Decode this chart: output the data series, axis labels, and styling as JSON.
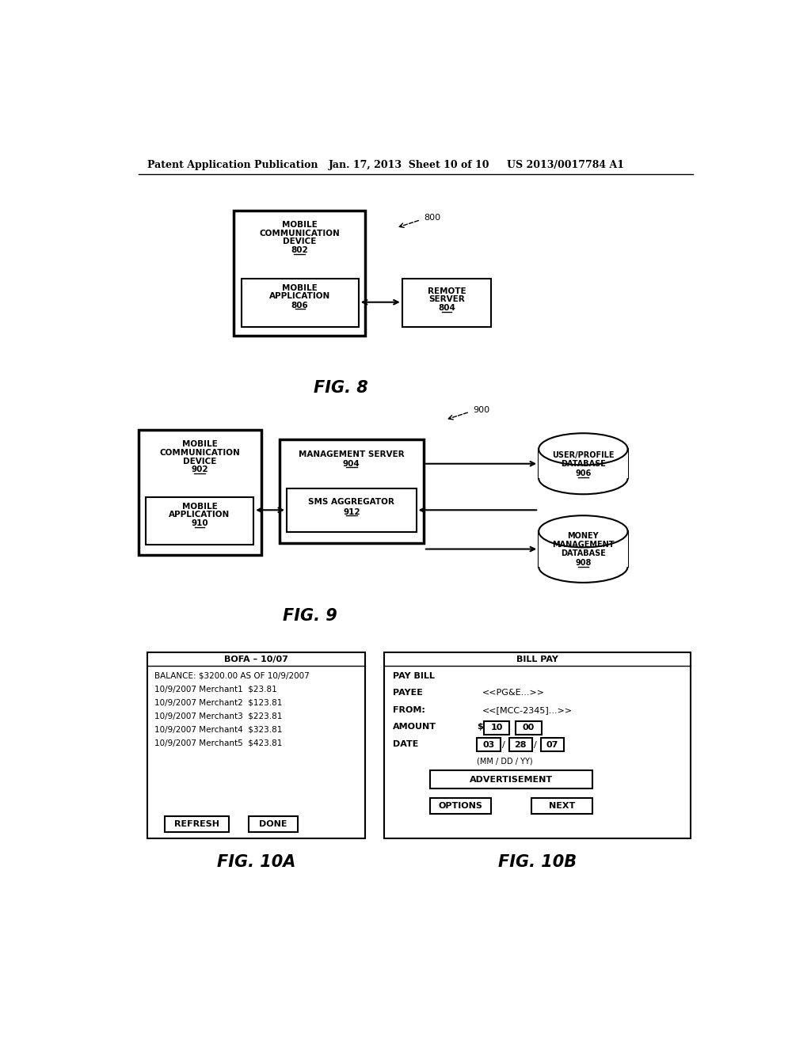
{
  "header_left": "Patent Application Publication",
  "header_mid": "Jan. 17, 2013  Sheet 10 of 10",
  "header_right": "US 2013/0017784 A1",
  "fig8_label": "FIG. 8",
  "fig9_label": "FIG. 9",
  "fig10a_label": "FIG. 10A",
  "fig10b_label": "FIG. 10B",
  "background": "#ffffff",
  "box_color": "#000000",
  "text_color": "#000000"
}
